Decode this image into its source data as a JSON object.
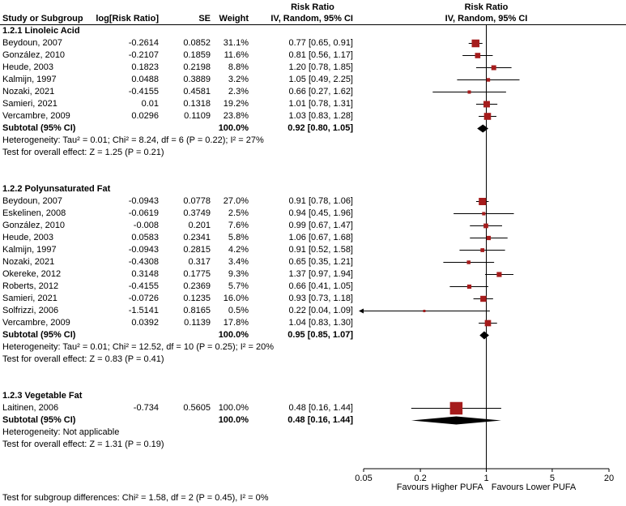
{
  "header": {
    "effect_col_title": "Risk Ratio",
    "effect_col_subtitle": "IV, Random, 95% CI",
    "plot_col_title": "Risk Ratio",
    "plot_col_subtitle": "IV, Random, 95% CI",
    "study_col": "Study or Subgroup",
    "log_col": "log[Risk Ratio]",
    "se_col": "SE",
    "weight_col": "Weight"
  },
  "footer": {
    "subgroup_test": "Test for subgroup differences: Chi² = 1.58, df = 2 (P = 0.45), I² = 0%"
  },
  "chart_data": {
    "type": "scatter",
    "subtype": "forest-plot",
    "title": "Risk Ratio IV, Random, 95% CI",
    "x_scale": "log",
    "x_min": 0.05,
    "x_max": 20,
    "null_line": 1,
    "x_ticks": [
      0.05,
      0.2,
      1,
      5,
      20
    ],
    "x_tick_labels": [
      "0.05",
      "0.2",
      "1",
      "5",
      "20"
    ],
    "favours_left": "Favours Higher PUFA",
    "favours_right": "Favours Lower PUFA",
    "marker_color": "#a51c1c",
    "line_color": "#000000",
    "diamond_color": "#000000",
    "subgroups": [
      {
        "title": "1.2.1 Linoleic Acid",
        "studies": [
          {
            "study": "Beydoun, 2007",
            "log_rr": "-0.2614",
            "se": "0.0852",
            "weight": "31.1%",
            "weight_pct": 31.1,
            "rr": 0.77,
            "ci_lo": 0.65,
            "ci_hi": 0.91,
            "ci_text": "0.77 [0.65, 0.91]"
          },
          {
            "study": "González, 2010",
            "log_rr": "-0.2107",
            "se": "0.1859",
            "weight": "11.6%",
            "weight_pct": 11.6,
            "rr": 0.81,
            "ci_lo": 0.56,
            "ci_hi": 1.17,
            "ci_text": "0.81 [0.56, 1.17]"
          },
          {
            "study": "Heude, 2003",
            "log_rr": "0.1823",
            "se": "0.2198",
            "weight": "8.8%",
            "weight_pct": 8.8,
            "rr": 1.2,
            "ci_lo": 0.78,
            "ci_hi": 1.85,
            "ci_text": "1.20 [0.78, 1.85]"
          },
          {
            "study": "Kalmijn, 1997",
            "log_rr": "0.0488",
            "se": "0.3889",
            "weight": "3.2%",
            "weight_pct": 3.2,
            "rr": 1.05,
            "ci_lo": 0.49,
            "ci_hi": 2.25,
            "ci_text": "1.05 [0.49, 2.25]"
          },
          {
            "study": "Nozaki, 2021",
            "log_rr": "-0.4155",
            "se": "0.4581",
            "weight": "2.3%",
            "weight_pct": 2.3,
            "rr": 0.66,
            "ci_lo": 0.27,
            "ci_hi": 1.62,
            "ci_text": "0.66 [0.27, 1.62]"
          },
          {
            "study": "Samieri, 2021",
            "log_rr": "0.01",
            "se": "0.1318",
            "weight": "19.2%",
            "weight_pct": 19.2,
            "rr": 1.01,
            "ci_lo": 0.78,
            "ci_hi": 1.31,
            "ci_text": "1.01 [0.78, 1.31]"
          },
          {
            "study": "Vercambre, 2009",
            "log_rr": "0.0296",
            "se": "0.1109",
            "weight": "23.8%",
            "weight_pct": 23.8,
            "rr": 1.03,
            "ci_lo": 0.83,
            "ci_hi": 1.28,
            "ci_text": "1.03 [0.83, 1.28]"
          }
        ],
        "subtotal": {
          "label": "Subtotal (95% CI)",
          "weight": "100.0%",
          "rr": 0.92,
          "ci_lo": 0.8,
          "ci_hi": 1.05,
          "ci_text": "0.92 [0.80, 1.05]"
        },
        "heterogeneity": "Heterogeneity: Tau² = 0.01; Chi² = 8.24, df = 6 (P = 0.22); I² = 27%",
        "overall_effect": "Test for overall effect: Z = 1.25 (P = 0.21)"
      },
      {
        "title": "1.2.2 Polyunsaturated Fat",
        "studies": [
          {
            "study": "Beydoun, 2007",
            "log_rr": "-0.0943",
            "se": "0.0778",
            "weight": "27.0%",
            "weight_pct": 27.0,
            "rr": 0.91,
            "ci_lo": 0.78,
            "ci_hi": 1.06,
            "ci_text": "0.91 [0.78, 1.06]"
          },
          {
            "study": "Eskelinen, 2008",
            "log_rr": "-0.0619",
            "se": "0.3749",
            "weight": "2.5%",
            "weight_pct": 2.5,
            "rr": 0.94,
            "ci_lo": 0.45,
            "ci_hi": 1.96,
            "ci_text": "0.94 [0.45, 1.96]"
          },
          {
            "study": "González, 2010",
            "log_rr": "-0.008",
            "se": "0.201",
            "weight": "7.6%",
            "weight_pct": 7.6,
            "rr": 0.99,
            "ci_lo": 0.67,
            "ci_hi": 1.47,
            "ci_text": "0.99 [0.67, 1.47]"
          },
          {
            "study": "Heude, 2003",
            "log_rr": "0.0583",
            "se": "0.2341",
            "weight": "5.8%",
            "weight_pct": 5.8,
            "rr": 1.06,
            "ci_lo": 0.67,
            "ci_hi": 1.68,
            "ci_text": "1.06 [0.67, 1.68]"
          },
          {
            "study": "Kalmijn, 1997",
            "log_rr": "-0.0943",
            "se": "0.2815",
            "weight": "4.2%",
            "weight_pct": 4.2,
            "rr": 0.91,
            "ci_lo": 0.52,
            "ci_hi": 1.58,
            "ci_text": "0.91 [0.52, 1.58]"
          },
          {
            "study": "Nozaki, 2021",
            "log_rr": "-0.4308",
            "se": "0.317",
            "weight": "3.4%",
            "weight_pct": 3.4,
            "rr": 0.65,
            "ci_lo": 0.35,
            "ci_hi": 1.21,
            "ci_text": "0.65 [0.35, 1.21]"
          },
          {
            "study": "Okereke, 2012",
            "log_rr": "0.3148",
            "se": "0.1775",
            "weight": "9.3%",
            "weight_pct": 9.3,
            "rr": 1.37,
            "ci_lo": 0.97,
            "ci_hi": 1.94,
            "ci_text": "1.37 [0.97, 1.94]"
          },
          {
            "study": "Roberts, 2012",
            "log_rr": "-0.4155",
            "se": "0.2369",
            "weight": "5.7%",
            "weight_pct": 5.7,
            "rr": 0.66,
            "ci_lo": 0.41,
            "ci_hi": 1.05,
            "ci_text": "0.66 [0.41, 1.05]"
          },
          {
            "study": "Samieri, 2021",
            "log_rr": "-0.0726",
            "se": "0.1235",
            "weight": "16.0%",
            "weight_pct": 16.0,
            "rr": 0.93,
            "ci_lo": 0.73,
            "ci_hi": 1.18,
            "ci_text": "0.93 [0.73, 1.18]"
          },
          {
            "study": "Solfrizzi, 2006",
            "log_rr": "-1.5141",
            "se": "0.8165",
            "weight": "0.5%",
            "weight_pct": 0.5,
            "rr": 0.22,
            "ci_lo": 0.04,
            "ci_hi": 1.09,
            "ci_text": "0.22 [0.04, 1.09]"
          },
          {
            "study": "Vercambre, 2009",
            "log_rr": "0.0392",
            "se": "0.1139",
            "weight": "17.8%",
            "weight_pct": 17.8,
            "rr": 1.04,
            "ci_lo": 0.83,
            "ci_hi": 1.3,
            "ci_text": "1.04 [0.83, 1.30]"
          }
        ],
        "subtotal": {
          "label": "Subtotal (95% CI)",
          "weight": "100.0%",
          "rr": 0.95,
          "ci_lo": 0.85,
          "ci_hi": 1.07,
          "ci_text": "0.95 [0.85, 1.07]"
        },
        "heterogeneity": "Heterogeneity: Tau² = 0.01; Chi² = 12.52, df = 10 (P = 0.25); I² = 20%",
        "overall_effect": "Test for overall effect: Z = 0.83 (P = 0.41)"
      },
      {
        "title": "1.2.3 Vegetable Fat",
        "studies": [
          {
            "study": "Laitinen, 2006",
            "log_rr": "-0.734",
            "se": "0.5605",
            "weight": "100.0%",
            "weight_pct": 100.0,
            "rr": 0.48,
            "ci_lo": 0.16,
            "ci_hi": 1.44,
            "ci_text": "0.48 [0.16, 1.44]"
          }
        ],
        "subtotal": {
          "label": "Subtotal (95% CI)",
          "weight": "100.0%",
          "rr": 0.48,
          "ci_lo": 0.16,
          "ci_hi": 1.44,
          "ci_text": "0.48 [0.16, 1.44]"
        },
        "heterogeneity": "Heterogeneity: Not applicable",
        "overall_effect": "Test for overall effect: Z = 1.31 (P = 0.19)"
      }
    ]
  }
}
